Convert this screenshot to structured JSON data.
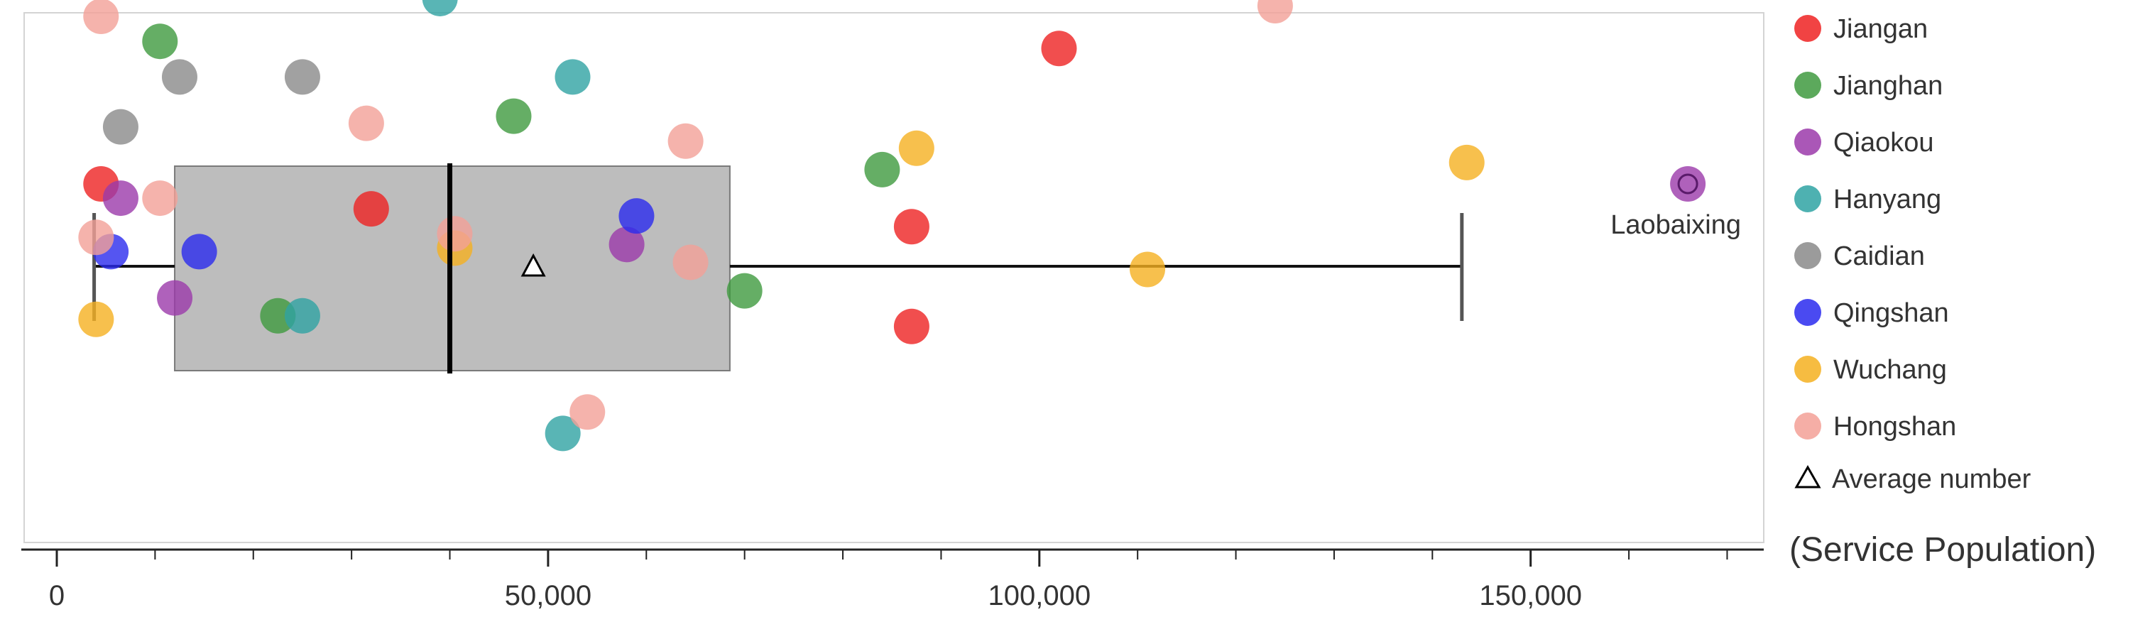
{
  "chart_data": {
    "type": "scatter",
    "xlabel": "(Service Population)",
    "xlim": [
      -7000,
      173000
    ],
    "xticks": [
      0,
      50000,
      100000,
      150000
    ],
    "xtick_labels": [
      "0",
      "50,000",
      "100,000",
      "150,000"
    ],
    "minor_tick_step": 10000,
    "legend_position": "right",
    "colors": {
      "Jiangan": "#ee2222",
      "Jianghan": "#3f9a3f",
      "Qiaokou": "#9b3aaa",
      "Hanyang": "#2fa3a3",
      "Caidian": "#8a8a8a",
      "Qingshan": "#2a2aee",
      "Wuchang": "#f5b020",
      "Hongshan": "#f3a097",
      "box_fill": "#bdbdbd",
      "box_stroke": "#7a7a7a"
    },
    "box": {
      "whisker_low": 3800,
      "q1": 12000,
      "median": 40000,
      "q3": 68500,
      "whisker_high": 143000,
      "mean": 48500
    },
    "outlier_label": "Laobaixing",
    "mean_label": "Average number",
    "series": [
      {
        "name": "Jiangan",
        "points": [
          [
            4500,
            0.5
          ],
          [
            32000,
            0.43
          ],
          [
            87000,
            0.38
          ],
          [
            102000,
            0.88
          ],
          [
            87000,
            0.1
          ]
        ]
      },
      {
        "name": "Jianghan",
        "points": [
          [
            10500,
            0.9
          ],
          [
            46500,
            0.69
          ],
          [
            84000,
            0.54
          ],
          [
            70000,
            0.2
          ],
          [
            22500,
            0.13
          ]
        ]
      },
      {
        "name": "Qiaokou",
        "points": [
          [
            6500,
            0.46
          ],
          [
            12000,
            0.18
          ],
          [
            58000,
            0.33
          ],
          [
            166000,
            0.5
          ]
        ]
      },
      {
        "name": "Hanyang",
        "points": [
          [
            39000,
            1.02
          ],
          [
            52500,
            0.8
          ],
          [
            25000,
            0.13
          ],
          [
            51500,
            -0.2
          ]
        ]
      },
      {
        "name": "Caidian",
        "points": [
          [
            12500,
            0.8
          ],
          [
            25000,
            0.8
          ],
          [
            6500,
            0.66
          ]
        ]
      },
      {
        "name": "Qingshan",
        "points": [
          [
            5500,
            0.31
          ],
          [
            14500,
            0.31
          ],
          [
            59000,
            0.41
          ]
        ]
      },
      {
        "name": "Wuchang",
        "points": [
          [
            4000,
            0.12
          ],
          [
            40500,
            0.32
          ],
          [
            87500,
            0.6
          ],
          [
            111000,
            0.26
          ],
          [
            143500,
            0.56
          ]
        ]
      },
      {
        "name": "Hongshan",
        "points": [
          [
            4500,
            0.97
          ],
          [
            31500,
            0.67
          ],
          [
            64000,
            0.62
          ],
          [
            10500,
            0.46
          ],
          [
            4000,
            0.35
          ],
          [
            40500,
            0.36
          ],
          [
            64500,
            0.28
          ],
          [
            124000,
            1.0
          ],
          [
            54000,
            -0.14
          ]
        ]
      }
    ]
  }
}
